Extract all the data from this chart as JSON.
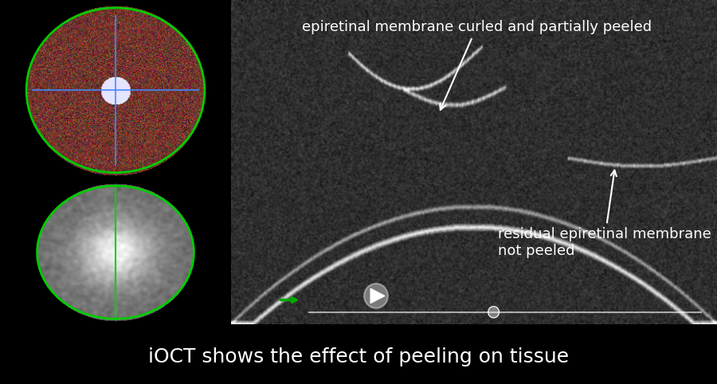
{
  "title_text": "iOCT shows the effect of peeling on tissue",
  "title_color": "#ffffff",
  "title_fontsize": 18,
  "bg_color": "#000000",
  "bottom_bar_color": "#1a1a1a",
  "annotation1": "epiretinal membrane curled and partially peeled",
  "annotation2": "residual epiretinal membrane\nnot peeled",
  "annotation_color": "#ffffff",
  "annotation_fontsize": 13,
  "oct_bg_color": "#2a2a2a",
  "left_panel_bg": "#000000",
  "fundus_border_color": "#00cc00",
  "ir_border_color": "#00cc00"
}
